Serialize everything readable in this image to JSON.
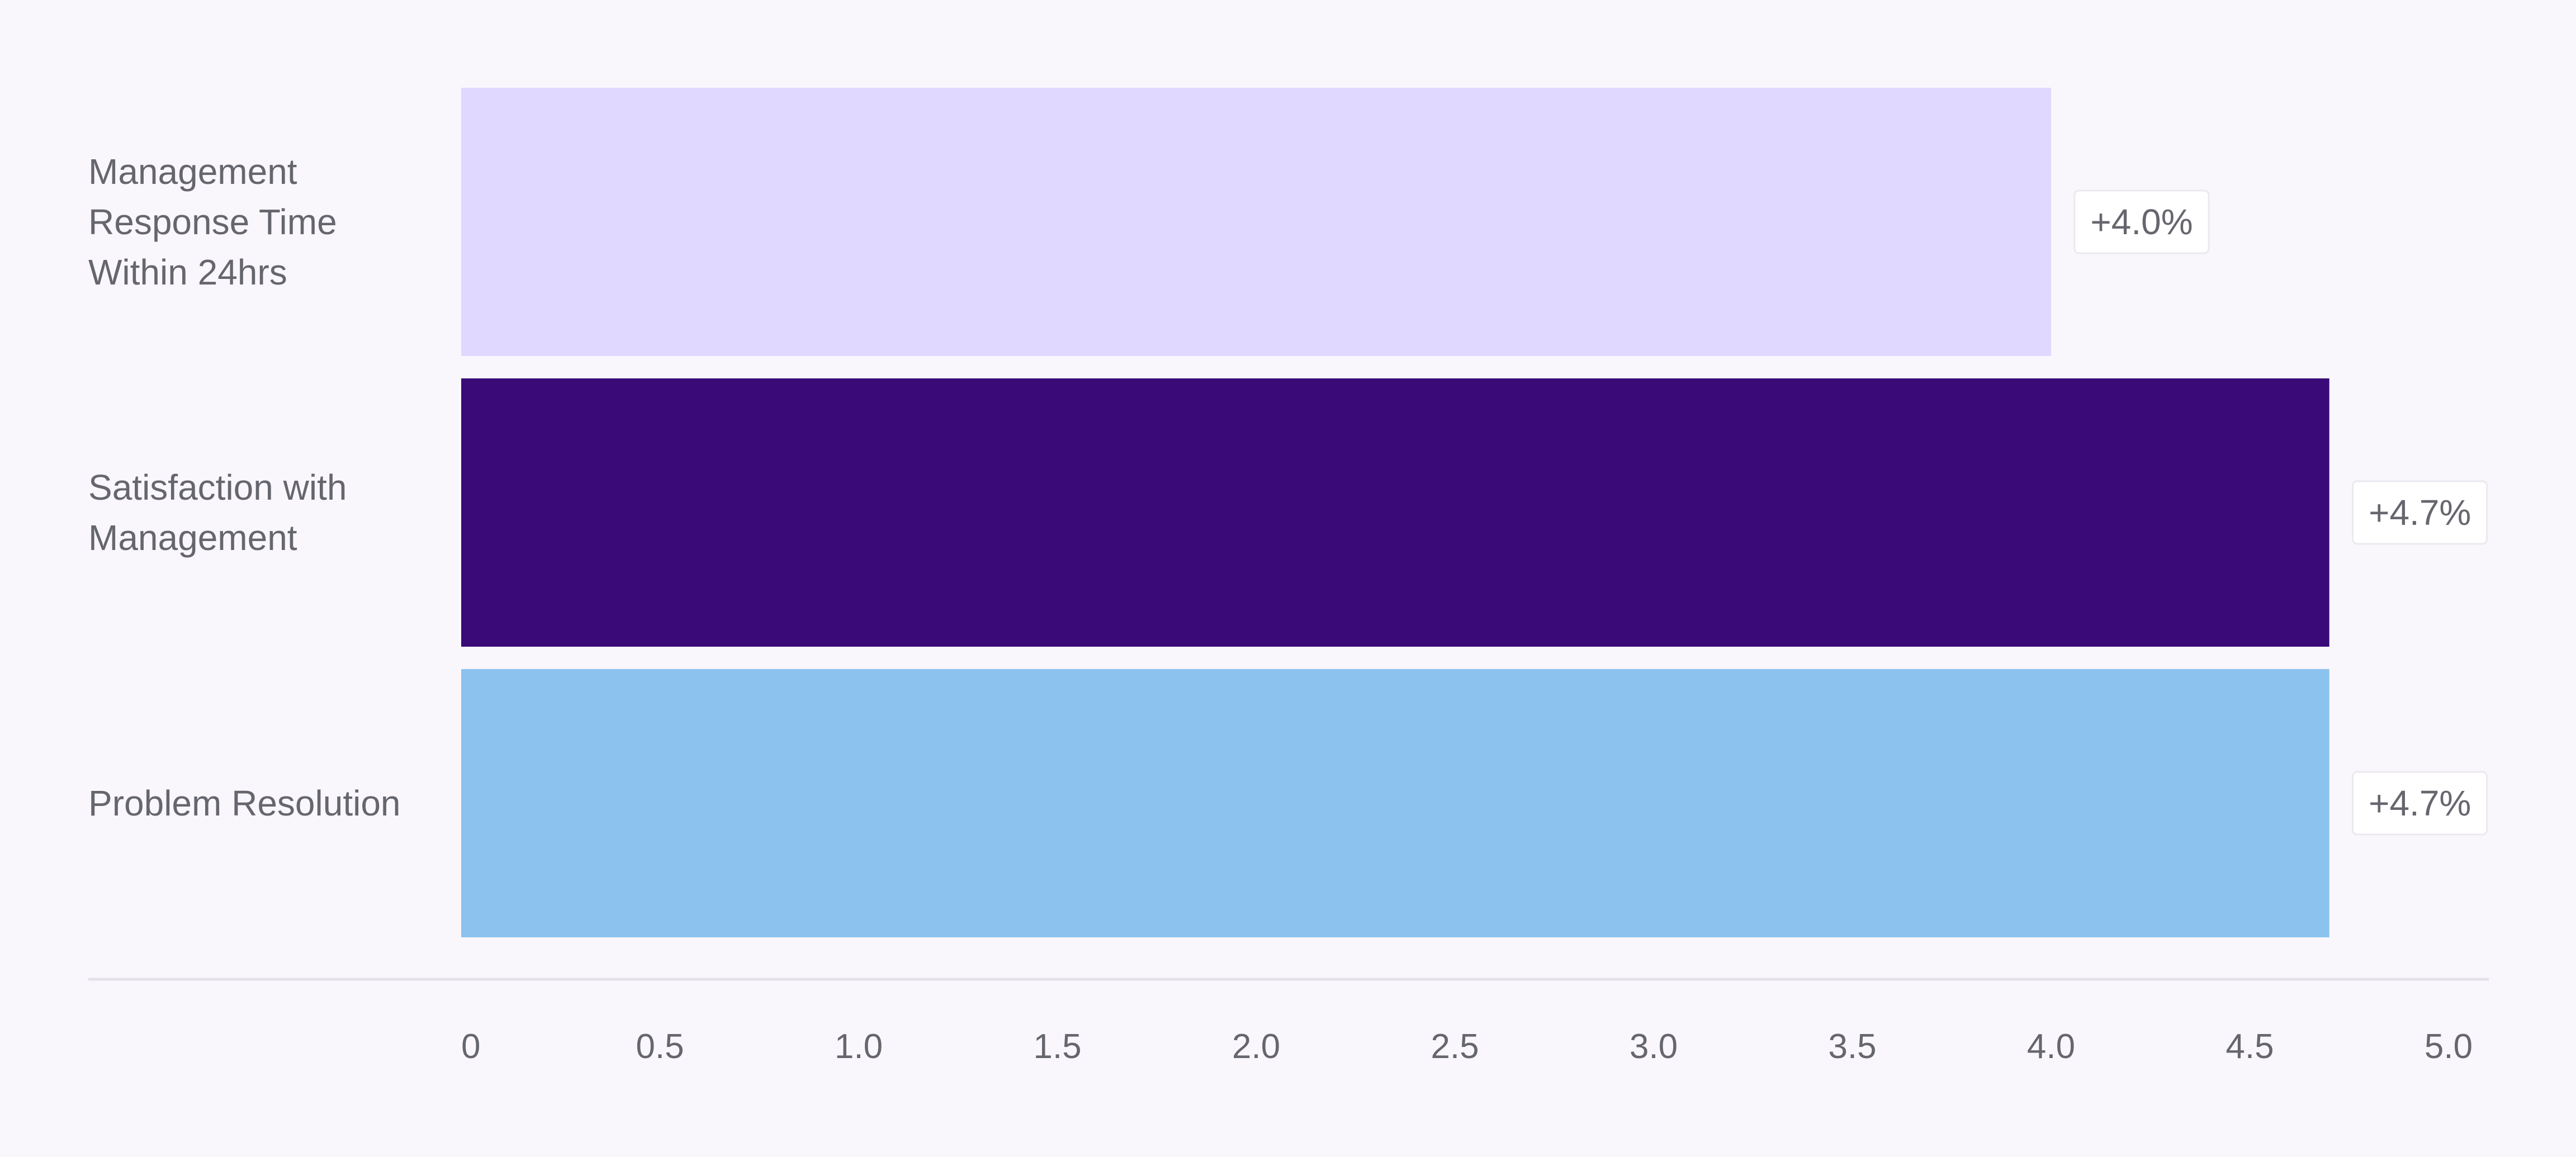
{
  "chart_data": {
    "type": "bar",
    "orientation": "horizontal",
    "categories": [
      "Management Response Time Within 24hrs",
      "Satisfaction with Management",
      "Problem Resolution"
    ],
    "category_label_lines": [
      [
        "Management",
        "Response Time",
        "Within 24hrs"
      ],
      [
        "Satisfaction with",
        "Management"
      ],
      [
        "Problem Resolution"
      ]
    ],
    "values": [
      4.0,
      4.7,
      4.7
    ],
    "data_labels": [
      "+4.0%",
      "+4.7%",
      "+4.7%"
    ],
    "colors": [
      "#e0d8ff",
      "#3a0a78",
      "#8cc2ee"
    ],
    "xlim": [
      0,
      5.0
    ],
    "xticks": [
      "0",
      "0.5",
      "1.0",
      "1.5",
      "2.0",
      "2.5",
      "3.0",
      "3.5",
      "4.0",
      "4.5",
      "5.0"
    ],
    "xtick_values": [
      0,
      0.5,
      1.0,
      1.5,
      2.0,
      2.5,
      3.0,
      3.5,
      4.0,
      4.5,
      5.0
    ],
    "grid": false,
    "legend": "none",
    "title": "",
    "xlabel": "",
    "ylabel": ""
  }
}
